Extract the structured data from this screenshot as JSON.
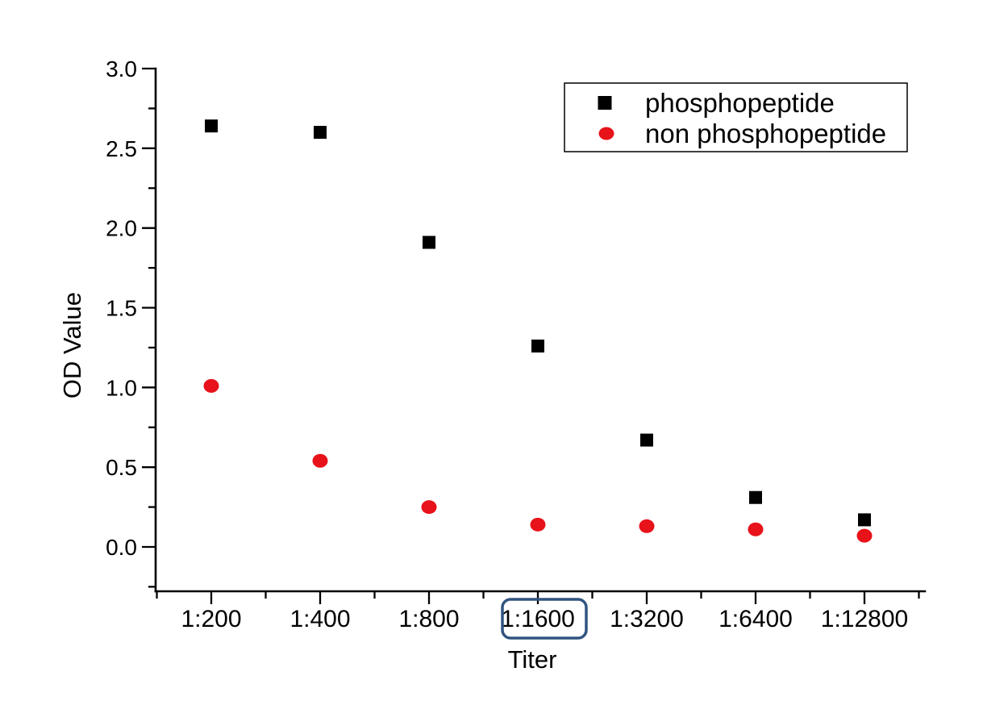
{
  "chart_data": {
    "type": "scatter",
    "title": "",
    "xlabel": "Titer",
    "ylabel": "OD Value",
    "categories": [
      "1:200",
      "1:400",
      "1:800",
      "1:1600",
      "1:3200",
      "1:6400",
      "1:12800"
    ],
    "series": [
      {
        "name": "phosphopeptide",
        "marker": "square",
        "color": "#000000",
        "values": [
          2.64,
          2.6,
          1.91,
          1.26,
          0.67,
          0.31,
          0.17
        ]
      },
      {
        "name": "non phosphopeptide",
        "marker": "circle",
        "color": "#e8121a",
        "values": [
          1.01,
          0.54,
          0.25,
          0.14,
          0.13,
          0.11,
          0.07
        ]
      }
    ],
    "y_ticks": [
      "0.0",
      "0.5",
      "1.0",
      "1.5",
      "2.0",
      "2.5",
      "3.0"
    ],
    "ylim": [
      -0.28,
      3.0
    ],
    "grid": false,
    "legend_position": "top-right",
    "axis_color": "#000000"
  },
  "annotations": {
    "highlight_box": {
      "target_label": "1:1600",
      "color": "#315480",
      "shape": "rounded-rectangle"
    }
  }
}
